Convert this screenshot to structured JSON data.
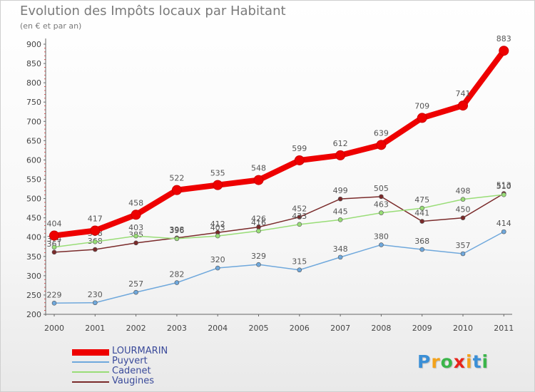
{
  "chart_data": {
    "type": "line",
    "title": "Evolution des Impôts locaux par Habitant",
    "subtitle": "(en € et par an)",
    "xlabel": "",
    "ylabel": "",
    "categories": [
      "2000",
      "2001",
      "2002",
      "2003",
      "2004",
      "2005",
      "2006",
      "2007",
      "2008",
      "2009",
      "2010",
      "2011"
    ],
    "ylim": [
      200,
      900
    ],
    "yticks": [
      200,
      250,
      300,
      350,
      400,
      450,
      500,
      550,
      600,
      650,
      700,
      750,
      800,
      850,
      900
    ],
    "grid": false,
    "legend_position": "bottom-left",
    "series": [
      {
        "name": "LOURMARIN",
        "color": "#ee0000",
        "values": [
          404,
          417,
          458,
          522,
          535,
          548,
          599,
          612,
          639,
          709,
          741,
          883
        ],
        "labels": [
          "404",
          "417",
          "458",
          "522",
          "535",
          "548",
          "599",
          "612",
          "639",
          "709",
          "741",
          "883"
        ]
      },
      {
        "name": "Puyvert",
        "color": "#6fa8dc",
        "values": [
          229,
          230,
          257,
          282,
          320,
          329,
          315,
          348,
          380,
          368,
          357,
          414
        ],
        "labels": [
          "229",
          "230",
          "257",
          "282",
          "320",
          "329",
          "315",
          "348",
          "380",
          "368",
          "357",
          "414"
        ]
      },
      {
        "name": "Cadenet",
        "color": "#99dd77",
        "values": [
          374,
          388,
          403,
          396,
          403,
          416,
          433,
          445,
          463,
          475,
          498,
          510
        ],
        "labels": [
          "374",
          "388",
          "403",
          "396",
          "403",
          "416",
          "433",
          "445",
          "463",
          "475",
          "498",
          "510"
        ]
      },
      {
        "name": "Vaugines",
        "color": "#7a2a2a",
        "values": [
          361,
          368,
          385,
          398,
          412,
          426,
          452,
          499,
          505,
          441,
          450,
          513
        ],
        "labels": [
          "361",
          "368",
          "385",
          "398",
          "412",
          "426",
          "452",
          "499",
          "505",
          "441",
          "450",
          "513"
        ]
      }
    ]
  },
  "logo": {
    "letters": [
      "P",
      "r",
      "o",
      "x",
      "i",
      "t",
      "i"
    ],
    "colors": [
      "#3b8fd6",
      "#f3a21b",
      "#3bb54a",
      "#e8241b",
      "#f3a21b",
      "#3b8fd6",
      "#3bb54a"
    ]
  }
}
